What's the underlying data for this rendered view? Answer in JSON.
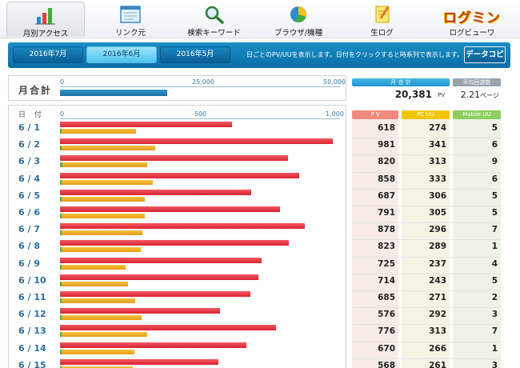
{
  "nav": {
    "items": [
      {
        "label": "月別アクセス",
        "icon": "bar-chart-icon",
        "active": true
      },
      {
        "label": "リンク元",
        "icon": "window-list-icon"
      },
      {
        "label": "検索キーワード",
        "icon": "magnifier-icon"
      },
      {
        "label": "ブラウザ/機種",
        "icon": "pie-chart-icon"
      },
      {
        "label": "生ログ",
        "icon": "notepad-pencil-icon"
      },
      {
        "label": "ログビューワ",
        "logo_text": "ログミン"
      }
    ]
  },
  "months": {
    "buttons": [
      "2016年7月",
      "2016年6月",
      "2016年5月"
    ],
    "active_index": 1,
    "note": "日ごとのPV/UUを表示します。日付をクリックすると時系列で表示します。",
    "copy_label": "データコピー"
  },
  "month_total": {
    "label": "月合計",
    "scale_ticks": [
      "0",
      "25,000",
      "50,000"
    ],
    "scale_max": 50000,
    "pv_value": 20381,
    "sum_header": "月 合 計",
    "sum_value": "20,381",
    "sum_unit": "PV",
    "avg_header": "平均回遊数",
    "avg_value": "2.21",
    "avg_unit": "ページ"
  },
  "daily": {
    "date_header": "日 付",
    "scale_ticks": [
      "0",
      "500",
      "1,000"
    ],
    "scale_max": 1000,
    "col_headers": {
      "pv": "P V",
      "pc": "PC UU",
      "mobile": "Mobile UU"
    },
    "colors": {
      "pv": "#d9232f",
      "pc": "#e79c14",
      "mobile": "#52b03a",
      "pv_head": "#f08a7e",
      "pc_head": "#f3c600",
      "mobile_head": "#8ccf5e"
    },
    "rows": [
      {
        "date": "6 / 1",
        "pv": 618,
        "pc": 274,
        "mobile": 5
      },
      {
        "date": "6 / 2",
        "pv": 981,
        "pc": 341,
        "mobile": 6
      },
      {
        "date": "6 / 3",
        "pv": 820,
        "pc": 313,
        "mobile": 9
      },
      {
        "date": "6 / 4",
        "pv": 858,
        "pc": 333,
        "mobile": 6
      },
      {
        "date": "6 / 5",
        "pv": 687,
        "pc": 306,
        "mobile": 5
      },
      {
        "date": "6 / 6",
        "pv": 791,
        "pc": 305,
        "mobile": 5
      },
      {
        "date": "6 / 7",
        "pv": 878,
        "pc": 296,
        "mobile": 7
      },
      {
        "date": "6 / 8",
        "pv": 823,
        "pc": 289,
        "mobile": 1
      },
      {
        "date": "6 / 9",
        "pv": 725,
        "pc": 237,
        "mobile": 4
      },
      {
        "date": "6 / 10",
        "pv": 714,
        "pc": 243,
        "mobile": 5
      },
      {
        "date": "6 / 11",
        "pv": 685,
        "pc": 271,
        "mobile": 2
      },
      {
        "date": "6 / 12",
        "pv": 576,
        "pc": 292,
        "mobile": 3
      },
      {
        "date": "6 / 13",
        "pv": 776,
        "pc": 313,
        "mobile": 7
      },
      {
        "date": "6 / 14",
        "pv": 670,
        "pc": 266,
        "mobile": 1
      },
      {
        "date": "6 / 15",
        "pv": 568,
        "pc": 261,
        "mobile": 3
      }
    ]
  }
}
